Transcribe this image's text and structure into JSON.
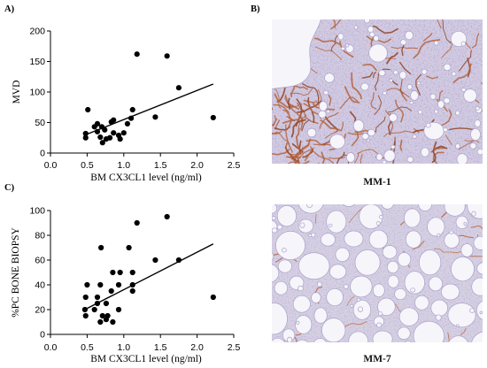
{
  "figure": {
    "panel_a_label": "A)",
    "panel_b_label": "B)",
    "panel_c_label": "C)"
  },
  "micrographs": [
    {
      "caption": "MM-1"
    },
    {
      "caption": "MM-7"
    }
  ],
  "colors": {
    "tissue": "#d2cbe1",
    "tissue_alt": "#d6d0e3",
    "fat_cell": "#f6f5fa",
    "cell_edge": "#aba3cb",
    "vessel": "#b5643e",
    "vessel_dark": "#8f4428",
    "vessel_light": "#c27c5c",
    "marker": "#000000"
  },
  "chart_data": [
    {
      "type": "scatter",
      "xlabel": "BM CX3CL1 level (ng/ml)",
      "ylabel": "MVD",
      "xlim": [
        0,
        2.5
      ],
      "ylim": [
        0,
        200
      ],
      "xtick_labels": [
        "0.0",
        "0.5",
        "1.0",
        "1.5",
        "2.0",
        "2.5"
      ],
      "ytick_labels": [
        "0",
        "50",
        "100",
        "150",
        "200"
      ],
      "grid": false,
      "marker_color": "#000000",
      "points": [
        [
          0.48,
          32
        ],
        [
          0.48,
          25
        ],
        [
          0.51,
          71
        ],
        [
          0.6,
          43
        ],
        [
          0.64,
          35
        ],
        [
          0.64,
          48
        ],
        [
          0.68,
          26
        ],
        [
          0.7,
          43
        ],
        [
          0.71,
          17
        ],
        [
          0.74,
          38
        ],
        [
          0.76,
          23
        ],
        [
          0.81,
          25
        ],
        [
          0.83,
          51
        ],
        [
          0.86,
          54
        ],
        [
          0.86,
          33
        ],
        [
          0.93,
          29
        ],
        [
          0.95,
          23
        ],
        [
          1.0,
          33
        ],
        [
          1.05,
          48
        ],
        [
          1.1,
          57
        ],
        [
          1.12,
          71
        ],
        [
          1.18,
          162
        ],
        [
          1.43,
          59
        ],
        [
          1.59,
          159
        ],
        [
          1.75,
          107
        ],
        [
          2.22,
          58
        ]
      ],
      "fit_line": [
        [
          0.5,
          31
        ],
        [
          2.22,
          113
        ]
      ]
    },
    {
      "type": "scatter",
      "xlabel": "BM CX3CL1 level (ng/ml)",
      "ylabel": "%PC BONE BIOPSY",
      "xlim": [
        0,
        2.5
      ],
      "ylim": [
        0,
        100
      ],
      "xtick_labels": [
        "0.0",
        "0.5",
        "1.0",
        "1.5",
        "2.0",
        "2.5"
      ],
      "ytick_labels": [
        "0",
        "20",
        "40",
        "60",
        "80",
        "100"
      ],
      "grid": false,
      "marker_color": "#000000",
      "points": [
        [
          0.47,
          20
        ],
        [
          0.48,
          30
        ],
        [
          0.48,
          15
        ],
        [
          0.5,
          40
        ],
        [
          0.6,
          20
        ],
        [
          0.64,
          30
        ],
        [
          0.64,
          25
        ],
        [
          0.68,
          40
        ],
        [
          0.68,
          10
        ],
        [
          0.69,
          70
        ],
        [
          0.71,
          15
        ],
        [
          0.76,
          25
        ],
        [
          0.76,
          12
        ],
        [
          0.78,
          15
        ],
        [
          0.83,
          35
        ],
        [
          0.85,
          50
        ],
        [
          0.85,
          10
        ],
        [
          0.93,
          40
        ],
        [
          0.93,
          20
        ],
        [
          0.95,
          50
        ],
        [
          1.07,
          70
        ],
        [
          1.12,
          50
        ],
        [
          1.12,
          40
        ],
        [
          1.12,
          35
        ],
        [
          1.18,
          90
        ],
        [
          1.43,
          60
        ],
        [
          1.59,
          95
        ],
        [
          1.75,
          60
        ],
        [
          2.22,
          30
        ]
      ],
      "fit_line": [
        [
          0.5,
          21
        ],
        [
          2.22,
          73
        ]
      ]
    }
  ]
}
